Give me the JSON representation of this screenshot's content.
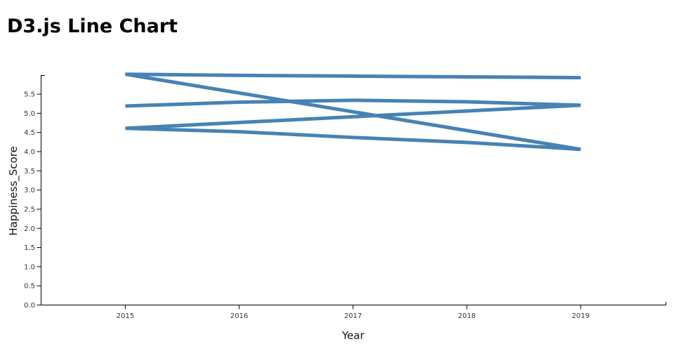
{
  "header": {
    "title": "D3.js Line Chart"
  },
  "chart_data": {
    "type": "line",
    "title": "D3.js Line Chart",
    "xlabel": "Year",
    "ylabel": "Happiness_Score",
    "x_ticks": [
      2015,
      2016,
      2017,
      2018,
      2019
    ],
    "y_tick_labels": [
      "0.0",
      "0.5",
      "1.0",
      "1.5",
      "2.0",
      "2.5",
      "3.0",
      "3.5",
      "4.0",
      "4.5",
      "5.0",
      "5.5"
    ],
    "y_tick_step": 0.5,
    "ylim": [
      0,
      6.02
    ],
    "grid": false,
    "legend": "none",
    "single_path": true,
    "line_color": "#4682b4",
    "line_width": 5,
    "series": [
      {
        "name": "line-1",
        "x": [
          2015,
          2016,
          2017,
          2018,
          2019
        ],
        "values": [
          5.19,
          5.29,
          5.34,
          5.3,
          5.21
        ]
      },
      {
        "name": "line-2",
        "x": [
          2015,
          2016,
          2017,
          2018,
          2019
        ],
        "values": [
          4.61,
          4.52,
          4.37,
          4.24,
          4.06
        ]
      },
      {
        "name": "line-3",
        "x": [
          2015,
          2016,
          2017,
          2018,
          2019
        ],
        "values": [
          6.02,
          5.99,
          5.97,
          5.95,
          5.93
        ]
      }
    ]
  }
}
